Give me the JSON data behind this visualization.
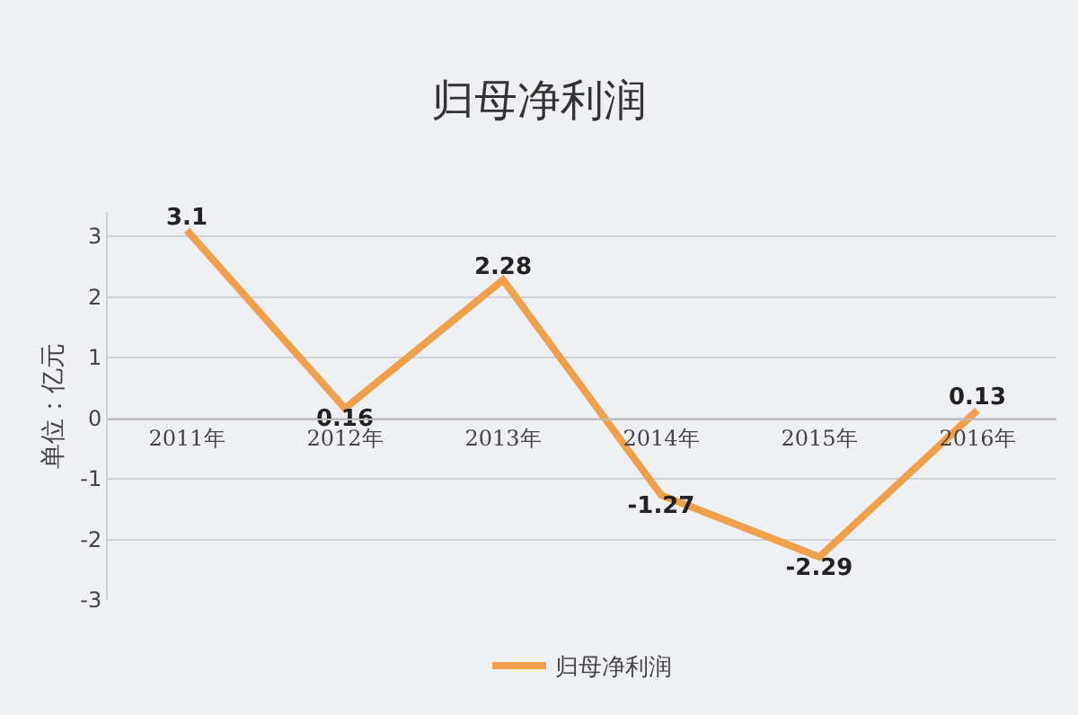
{
  "chart_data": {
    "type": "line",
    "title": "归母净利润",
    "ylabel": "单位：亿元",
    "categories": [
      "2011年",
      "2012年",
      "2013年",
      "2014年",
      "2015年",
      "2016年"
    ],
    "series": [
      {
        "name": "归母净利润",
        "color": "#f0a04b",
        "values": [
          3.1,
          0.16,
          2.28,
          -1.27,
          -2.29,
          0.13
        ]
      }
    ],
    "ylim": [
      -3,
      3.4
    ],
    "yticks": [
      -3,
      -2,
      -1,
      0,
      1,
      2,
      3
    ],
    "grid": "y",
    "legend": "bottom",
    "data_labels": true,
    "marker": "none",
    "line_style": "solid"
  }
}
